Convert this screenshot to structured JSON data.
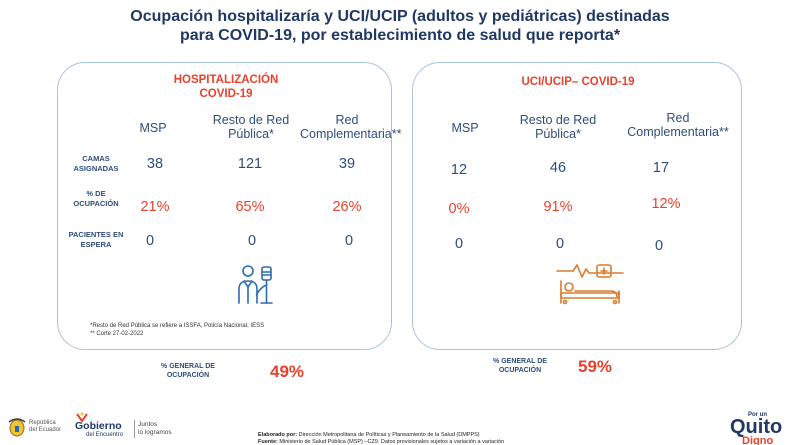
{
  "title": {
    "line1": "Ocupación hospitalizaría y UCI/UCIP (adultos y pediátricas) destinadas",
    "line2": "para COVID-19, por establecimiento de salud que reporta*"
  },
  "left_panel": {
    "title_line1": "HOSPITALIZACIÓN",
    "title_line2": "COVID-19",
    "columns": [
      "MSP",
      "Resto de Red Pública*",
      "Red Complementaria**"
    ],
    "columns_split": [
      [
        "MSP"
      ],
      [
        "Resto de Red",
        "Pública*"
      ],
      [
        "Red",
        "Complementaria**"
      ]
    ],
    "rows": [
      {
        "label": "CAMAS ASIGNADAS",
        "values": [
          "38",
          "121",
          "39"
        ]
      },
      {
        "label": "% DE OCUPACIÓN",
        "values": [
          "21%",
          "65%",
          "26%"
        ]
      },
      {
        "label": "PACIENTES EN ESPERA",
        "values": [
          "0",
          "0",
          "0"
        ]
      }
    ],
    "footnote1": "*Resto de Red Pública se refiere a ISSFA, Policía Nacional, IESS",
    "footnote2": "** Corte 27-02-2022",
    "icon": "doctor-iv-icon"
  },
  "right_panel": {
    "title": "UCI/UCIP– COVID-19",
    "columns_split": [
      [
        "MSP"
      ],
      [
        "Resto de Red",
        "Pública*"
      ],
      [
        "Red",
        "Complementaria**"
      ]
    ],
    "rows": [
      {
        "values": [
          "12",
          "46",
          "17"
        ]
      },
      {
        "values": [
          "0%",
          "91%",
          "12%"
        ]
      },
      {
        "values": [
          "0",
          "0",
          "0"
        ]
      }
    ],
    "icon": "hospital-bed-monitor-icon"
  },
  "general": {
    "left_label_line1": "% GENERAL DE",
    "left_label_line2": "OCUPACIÓN",
    "left_value": "49%",
    "right_label_line1": "% GENERAL DE",
    "right_label_line2": "OCUPACIÓN",
    "right_value": "59%"
  },
  "footer": {
    "logo1_line1": "República",
    "logo1_line2": "del Ecuador",
    "logo2_main": "Gobierno",
    "logo2_sub": "del Encuentro",
    "logo2_tag1": "Juntos",
    "logo2_tag2": "lo logramos",
    "credit1_label": "Elaborado por:",
    "credit1_text": "Dirección Metropolitana de Políticas y Planeamiento de la Salud (DMPPS)",
    "credit2_label": "Fuente:",
    "credit2_text": "Ministerio de Salud Pública (MSP) –CZ9. Datos provisionales sujetos a variación a variación",
    "logo3_top": "Por un",
    "logo3_main": "Quito",
    "logo3_sub": "Digno"
  },
  "colors": {
    "accent_red": "#e8412c",
    "navy": "#1f3864",
    "panel_border": "#aac3dc",
    "icon_blue": "#2b6cb0",
    "icon_orange": "#d97a2b"
  }
}
